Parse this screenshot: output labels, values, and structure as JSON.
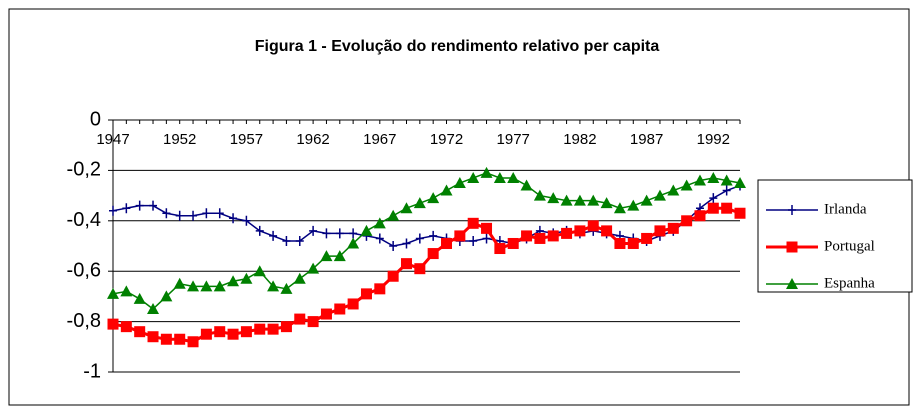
{
  "chart_data": {
    "type": "line",
    "title": "Figura 1 - Evolução do rendimento relativo per capita",
    "categories": [
      "1947",
      null,
      null,
      null,
      null,
      "1952",
      null,
      null,
      null,
      null,
      "1957",
      null,
      null,
      null,
      null,
      "1962",
      null,
      null,
      null,
      null,
      "1967",
      null,
      null,
      null,
      null,
      "1972",
      null,
      null,
      null,
      null,
      "1977",
      null,
      null,
      null,
      null,
      "1982",
      null,
      null,
      null,
      null,
      "1987",
      null,
      null,
      null,
      null,
      "1992",
      null,
      null
    ],
    "series": [
      {
        "name": "Irlanda",
        "color": "#000080",
        "marker": "plus",
        "values": [
          -0.36,
          -0.35,
          -0.34,
          -0.34,
          -0.37,
          -0.38,
          -0.38,
          -0.37,
          -0.37,
          -0.39,
          -0.4,
          -0.44,
          -0.46,
          -0.48,
          -0.48,
          -0.44,
          -0.45,
          -0.45,
          -0.45,
          -0.46,
          -0.47,
          -0.5,
          -0.49,
          -0.47,
          -0.46,
          -0.47,
          -0.48,
          -0.48,
          -0.47,
          -0.48,
          -0.49,
          -0.47,
          -0.44,
          -0.45,
          -0.44,
          -0.45,
          -0.44,
          -0.45,
          -0.46,
          -0.47,
          -0.48,
          -0.46,
          -0.44,
          -0.4,
          -0.35,
          -0.31,
          -0.28,
          -0.26
        ]
      },
      {
        "name": "Portugal",
        "color": "#ff0000",
        "marker": "square",
        "values": [
          -0.81,
          -0.82,
          -0.84,
          -0.86,
          -0.87,
          -0.87,
          -0.88,
          -0.85,
          -0.84,
          -0.85,
          -0.84,
          -0.83,
          -0.83,
          -0.82,
          -0.79,
          -0.8,
          -0.77,
          -0.75,
          -0.73,
          -0.69,
          -0.67,
          -0.62,
          -0.57,
          -0.59,
          -0.53,
          -0.49,
          -0.46,
          -0.41,
          -0.43,
          -0.51,
          -0.49,
          -0.46,
          -0.47,
          -0.46,
          -0.45,
          -0.44,
          -0.42,
          -0.44,
          -0.49,
          -0.49,
          -0.47,
          -0.44,
          -0.43,
          -0.4,
          -0.38,
          -0.35,
          -0.35,
          -0.37
        ]
      },
      {
        "name": "Espanha",
        "color": "#008000",
        "marker": "triangle",
        "values": [
          -0.69,
          -0.68,
          -0.71,
          -0.75,
          -0.7,
          -0.65,
          -0.66,
          -0.66,
          -0.66,
          -0.64,
          -0.63,
          -0.6,
          -0.66,
          -0.67,
          -0.63,
          -0.59,
          -0.54,
          -0.54,
          -0.49,
          -0.44,
          -0.41,
          -0.38,
          -0.35,
          -0.33,
          -0.31,
          -0.28,
          -0.25,
          -0.23,
          -0.21,
          -0.23,
          -0.23,
          -0.26,
          -0.3,
          -0.31,
          -0.32,
          -0.32,
          -0.32,
          -0.33,
          -0.35,
          -0.34,
          -0.32,
          -0.3,
          -0.28,
          -0.26,
          -0.24,
          -0.23,
          -0.24,
          -0.25
        ]
      }
    ],
    "ylim": [
      -1,
      0
    ],
    "yticks": [
      0,
      {
        "value": -0.2,
        "label": "-0,2"
      },
      {
        "value": -0.4,
        "label": "-0,4"
      },
      {
        "value": -0.6,
        "label": "-0,6"
      },
      {
        "value": -0.8,
        "label": "-0,8"
      },
      -1
    ],
    "grid": true,
    "legend": "right"
  }
}
